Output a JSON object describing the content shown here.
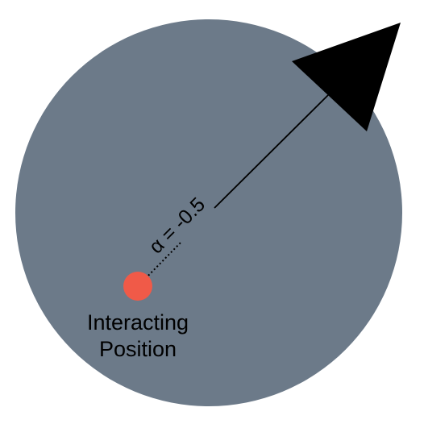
{
  "diagram": {
    "background_color": "#6c7a89",
    "arrow_color": "#000000",
    "marker_color": "#f05a48",
    "alpha_label": "α = -0.5",
    "position_label_line1": "Interacting",
    "position_label_line2": "Position"
  }
}
